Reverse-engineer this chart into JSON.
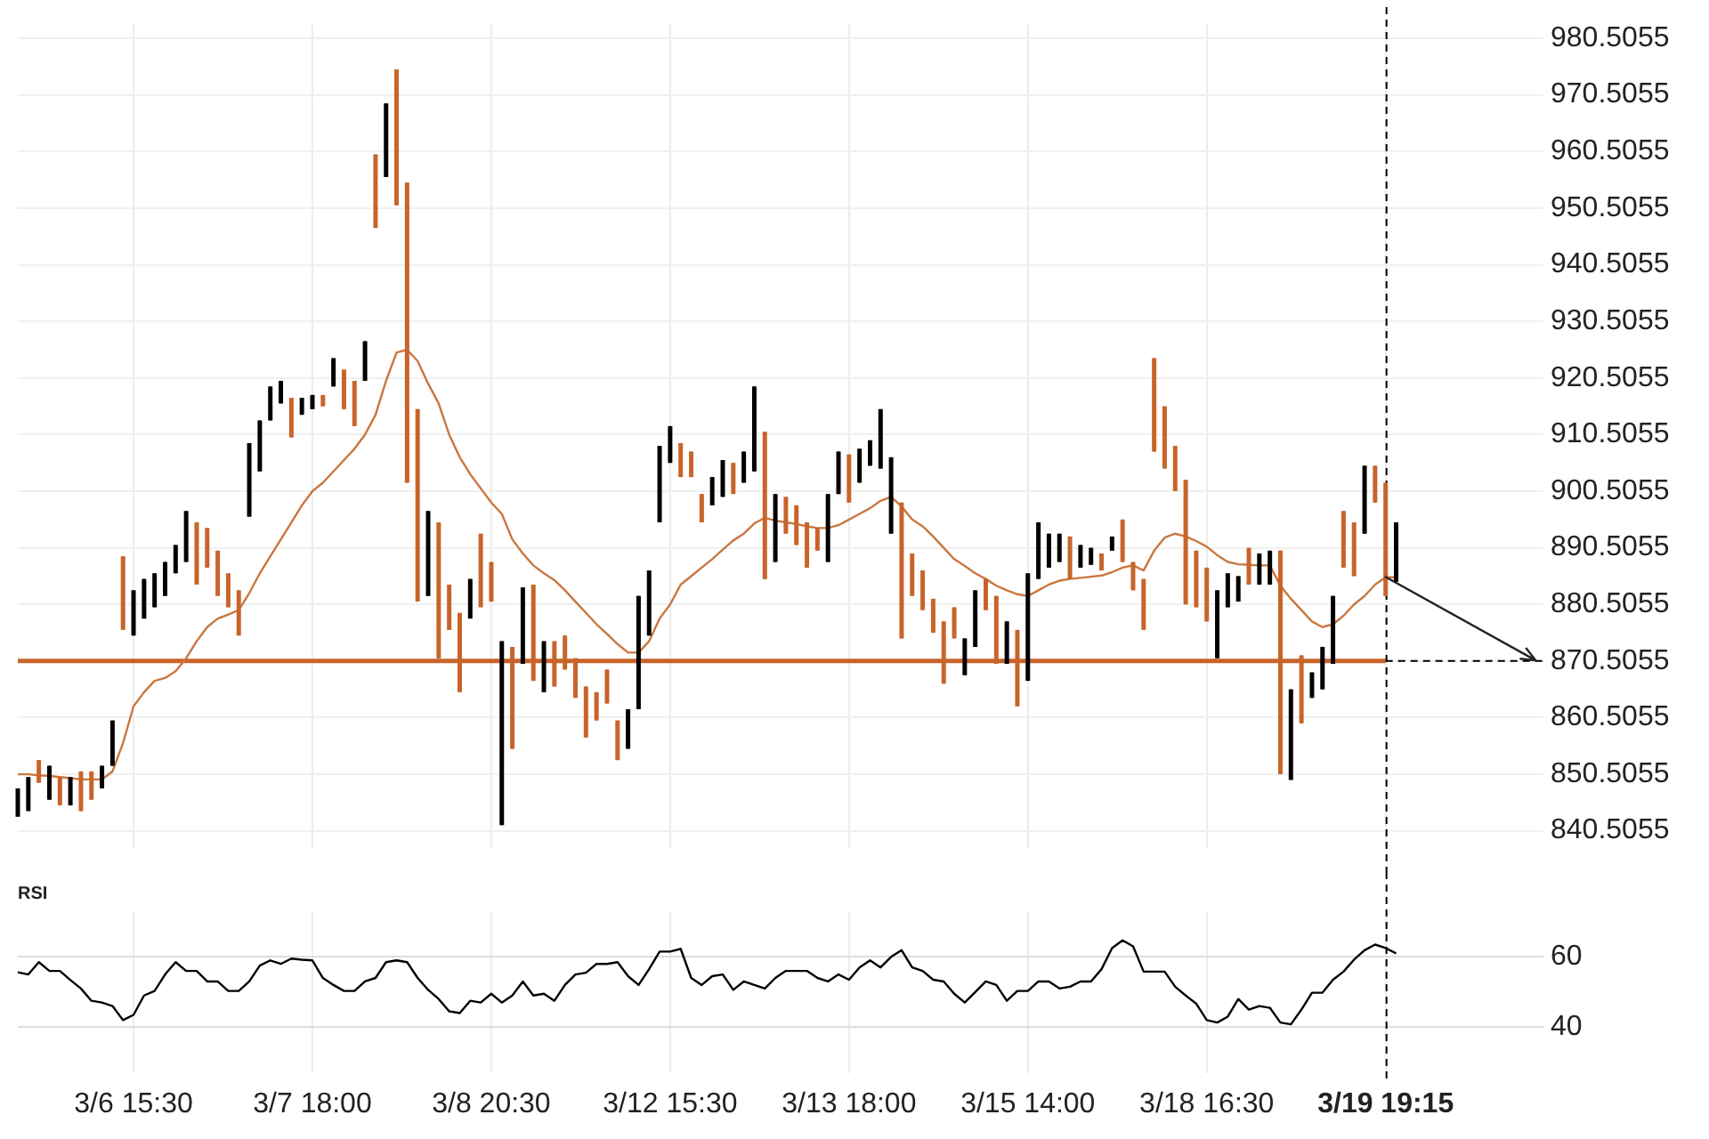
{
  "chart_data": [
    {
      "type": "candlestick",
      "categories": [
        null,
        null,
        null,
        null,
        null,
        null,
        null,
        null,
        null,
        null,
        null,
        "3/6 15:30",
        null,
        null,
        null,
        null,
        null,
        null,
        null,
        null,
        null,
        null,
        null,
        null,
        null,
        null,
        null,
        null,
        "3/7 18:00",
        null,
        null,
        null,
        null,
        null,
        null,
        null,
        null,
        null,
        null,
        null,
        null,
        null,
        null,
        null,
        null,
        "3/8 20:30",
        null,
        null,
        null,
        null,
        null,
        null,
        null,
        null,
        null,
        null,
        null,
        null,
        null,
        null,
        null,
        null,
        "3/12 15:30",
        null,
        null,
        null,
        null,
        null,
        null,
        null,
        null,
        null,
        null,
        null,
        null,
        null,
        null,
        null,
        null,
        "3/13 18:00",
        null,
        null,
        null,
        null,
        null,
        null,
        null,
        null,
        null,
        null,
        null,
        null,
        null,
        null,
        null,
        null,
        "3/15 14:00",
        null,
        null,
        null,
        null,
        null,
        null,
        null,
        null,
        null,
        null,
        null,
        null,
        null,
        null,
        null,
        null,
        "3/18 16:30",
        null,
        null,
        null,
        null,
        null,
        null,
        null,
        null,
        null,
        null,
        null,
        null,
        null,
        null,
        null,
        null,
        "3/19 19:15",
        null,
        null,
        null,
        null,
        null,
        null,
        null,
        null,
        null,
        null,
        null,
        null,
        null,
        null,
        null
      ],
      "ohlc": [
        [
          843,
          848,
          843,
          848
        ],
        [
          844,
          850,
          844,
          850
        ],
        [
          853,
          853,
          849,
          849
        ],
        [
          846,
          852,
          846,
          852
        ],
        [
          850,
          850,
          845,
          845
        ],
        [
          845,
          850,
          845,
          850
        ],
        [
          851,
          851,
          844,
          844
        ],
        [
          851,
          851,
          846,
          846
        ],
        [
          848,
          852,
          848,
          852
        ],
        [
          852,
          860,
          852,
          860
        ],
        [
          889,
          889,
          876,
          876
        ],
        [
          875,
          883,
          875,
          883
        ],
        [
          878,
          885,
          878,
          885
        ],
        [
          880,
          886,
          880,
          886
        ],
        [
          882,
          888,
          882,
          888
        ],
        [
          886,
          891,
          886,
          891
        ],
        [
          888,
          897,
          888,
          897
        ],
        [
          895,
          895,
          884,
          884
        ],
        [
          894,
          894,
          887,
          887
        ],
        [
          890,
          890,
          882,
          882
        ],
        [
          886,
          886,
          880,
          880
        ],
        [
          883,
          883,
          875,
          875
        ],
        [
          896,
          909,
          896,
          909
        ],
        [
          904,
          913,
          904,
          913
        ],
        [
          913,
          919,
          913,
          919
        ],
        [
          916,
          920,
          916,
          920
        ],
        [
          917,
          917,
          910,
          910
        ],
        [
          914,
          917,
          914,
          917
        ],
        [
          915,
          917.5,
          915,
          917.5
        ],
        [
          917.5,
          917.5,
          915.5,
          915.5
        ],
        [
          919,
          924,
          919,
          924
        ],
        [
          922,
          922,
          915,
          915
        ],
        [
          920,
          920,
          912,
          912
        ],
        [
          920,
          927,
          920,
          927
        ],
        [
          960,
          960,
          947,
          947
        ],
        [
          956,
          969,
          956,
          969
        ],
        [
          975,
          975,
          951,
          951
        ],
        [
          955,
          955,
          902,
          902
        ],
        [
          915,
          915,
          881,
          881
        ],
        [
          882,
          897,
          882,
          897
        ],
        [
          895,
          895,
          871,
          871
        ],
        [
          884,
          884,
          876,
          876
        ],
        [
          879,
          879,
          865,
          865
        ],
        [
          878,
          885,
          878,
          885
        ],
        [
          893,
          893,
          880,
          880
        ],
        [
          888,
          888,
          881,
          881
        ],
        [
          841.5,
          874,
          841.5,
          874
        ],
        [
          873,
          873,
          855,
          855
        ],
        [
          870,
          883.5,
          870,
          883.5
        ],
        [
          884,
          884,
          867,
          867
        ],
        [
          865,
          874,
          865,
          874
        ],
        [
          874,
          874,
          866,
          866
        ],
        [
          875,
          875,
          869,
          869
        ],
        [
          871,
          871,
          864,
          864
        ],
        [
          866,
          866,
          857,
          857
        ],
        [
          865,
          865,
          860,
          860
        ],
        [
          869,
          869,
          863,
          863
        ],
        [
          860,
          860,
          853,
          853
        ],
        [
          855,
          862,
          855,
          862
        ],
        [
          862,
          882,
          862,
          882
        ],
        [
          875,
          886.5,
          875,
          886.5
        ],
        [
          895,
          908.5,
          895,
          908.5
        ],
        [
          905.5,
          912,
          905.5,
          912
        ],
        [
          909,
          909,
          903,
          903
        ],
        [
          907.5,
          907.5,
          903,
          903
        ],
        [
          900,
          900,
          895,
          895
        ],
        [
          898,
          903,
          898,
          903
        ],
        [
          899.5,
          906,
          899.5,
          906
        ],
        [
          905.5,
          905.5,
          900,
          900
        ],
        [
          902,
          907.5,
          902,
          907.5
        ],
        [
          904,
          919,
          904,
          919
        ],
        [
          911,
          911,
          885,
          885
        ],
        [
          888,
          900,
          888,
          900
        ],
        [
          899.5,
          899.5,
          893,
          893
        ],
        [
          898,
          898,
          891,
          891
        ],
        [
          895,
          895,
          887,
          887
        ],
        [
          894,
          894,
          890,
          890
        ],
        [
          888,
          900,
          888,
          900
        ],
        [
          900,
          907.5,
          900,
          907.5
        ],
        [
          907,
          907,
          898.5,
          898.5
        ],
        [
          902,
          908,
          902,
          908
        ],
        [
          905,
          909.5,
          905,
          909.5
        ],
        [
          904.5,
          915,
          904.5,
          915
        ],
        [
          893,
          906.5,
          893,
          906.5
        ],
        [
          898.5,
          898.5,
          874.5,
          874.5
        ],
        [
          889.5,
          889.5,
          882,
          882
        ],
        [
          886.5,
          886.5,
          879.5,
          879.5
        ],
        [
          881.5,
          881.5,
          875.5,
          875.5
        ],
        [
          877.5,
          877.5,
          866.5,
          866.5
        ],
        [
          880,
          880,
          874.5,
          874.5
        ],
        [
          868,
          874.5,
          868,
          874.5
        ],
        [
          873,
          883,
          873,
          883
        ],
        [
          885,
          885,
          879.5,
          879.5
        ],
        [
          882,
          882,
          870,
          870
        ],
        [
          870,
          877.5,
          870,
          877.5
        ],
        [
          876,
          876,
          862.5,
          862.5
        ],
        [
          867,
          886,
          867,
          886
        ],
        [
          885,
          895,
          885,
          895
        ],
        [
          887,
          893,
          887,
          893
        ],
        [
          888,
          893,
          888,
          893
        ],
        [
          892.5,
          892.5,
          885,
          885
        ],
        [
          887,
          891,
          887,
          891
        ],
        [
          887.5,
          890.5,
          887.5,
          890.5
        ],
        [
          889.5,
          889.5,
          886.5,
          886.5
        ],
        [
          890,
          892.5,
          890,
          892.5
        ],
        [
          895.5,
          895.5,
          888,
          888
        ],
        [
          888,
          888,
          883,
          883
        ],
        [
          885,
          885,
          876,
          876
        ],
        [
          924,
          924,
          907.5,
          907.5
        ],
        [
          915.5,
          915.5,
          904.5,
          904.5
        ],
        [
          908.5,
          908.5,
          900.5,
          900.5
        ],
        [
          902.5,
          902.5,
          880.5,
          880.5
        ],
        [
          890,
          890,
          880,
          880
        ],
        [
          887,
          887,
          877.5,
          877.5
        ],
        [
          871,
          883,
          871,
          883
        ],
        [
          880,
          886,
          880,
          886
        ],
        [
          881,
          885.5,
          881,
          885.5
        ],
        [
          890.5,
          890.5,
          884,
          884
        ],
        [
          884,
          889.5,
          884,
          889.5
        ],
        [
          884,
          890,
          884,
          890
        ],
        [
          890,
          890,
          850.5,
          850.5
        ],
        [
          849.5,
          865.5,
          849.5,
          865.5
        ],
        [
          871.5,
          871.5,
          859.5,
          859.5
        ],
        [
          864,
          868.5,
          864,
          868.5
        ],
        [
          865.5,
          873,
          865.5,
          873
        ],
        [
          870,
          882,
          870,
          882
        ],
        [
          897,
          897,
          887,
          887
        ],
        [
          895,
          895,
          885.5,
          885.5
        ],
        [
          893,
          905,
          893,
          905
        ],
        [
          905,
          905,
          898.5,
          898.5
        ],
        [
          902,
          902,
          882,
          882
        ],
        [
          884.5,
          895,
          884.5,
          895
        ],
        null,
        null,
        null,
        null,
        null,
        null,
        null,
        null,
        null,
        null,
        null,
        null,
        null,
        null
      ],
      "colors": [
        "#000000",
        "#000000",
        "#c8642a",
        "#000000",
        "#c8642a",
        "#000000",
        "#c8642a",
        "#c8642a",
        "#000000",
        "#000000",
        "#c8642a",
        "#000000",
        "#000000",
        "#000000",
        "#000000",
        "#000000",
        "#000000",
        "#c8642a",
        "#c8642a",
        "#c8642a",
        "#c8642a",
        "#c8642a",
        "#000000",
        "#000000",
        "#000000",
        "#000000",
        "#c8642a",
        "#000000",
        "#000000",
        "#c8642a",
        "#000000",
        "#c8642a",
        "#c8642a",
        "#000000",
        "#c8642a",
        "#000000",
        "#c8642a",
        "#c8642a",
        "#c8642a",
        "#000000",
        "#c8642a",
        "#c8642a",
        "#c8642a",
        "#000000",
        "#c8642a",
        "#c8642a",
        "#000000",
        "#c8642a",
        "#000000",
        "#c8642a",
        "#000000",
        "#c8642a",
        "#c8642a",
        "#c8642a",
        "#c8642a",
        "#c8642a",
        "#c8642a",
        "#c8642a",
        "#000000",
        "#000000",
        "#000000",
        "#000000",
        "#000000",
        "#c8642a",
        "#c8642a",
        "#c8642a",
        "#000000",
        "#000000",
        "#c8642a",
        "#000000",
        "#000000",
        "#c8642a",
        "#000000",
        "#c8642a",
        "#c8642a",
        "#c8642a",
        "#c8642a",
        "#000000",
        "#000000",
        "#c8642a",
        "#000000",
        "#000000",
        "#000000",
        "#000000",
        "#c8642a",
        "#c8642a",
        "#c8642a",
        "#c8642a",
        "#c8642a",
        "#c8642a",
        "#000000",
        "#000000",
        "#c8642a",
        "#c8642a",
        "#000000",
        "#c8642a",
        "#000000",
        "#000000",
        "#000000",
        "#000000",
        "#c8642a",
        "#000000",
        "#000000",
        "#c8642a",
        "#000000",
        "#c8642a",
        "#c8642a",
        "#c8642a",
        "#c8642a",
        "#c8642a",
        "#c8642a",
        "#c8642a",
        "#c8642a",
        "#c8642a",
        "#000000",
        "#000000",
        "#000000",
        "#c8642a",
        "#000000",
        "#000000",
        "#c8642a",
        "#000000",
        "#c8642a",
        "#000000",
        "#000000",
        "#000000",
        "#c8642a",
        "#c8642a",
        "#000000",
        "#c8642a",
        "#c8642a",
        "#000000",
        null,
        null,
        null,
        null,
        null,
        null,
        null,
        null,
        null,
        null,
        null,
        null,
        null,
        null
      ],
      "series": [
        {
          "type": "line",
          "color": "#c9773f",
          "values": [
            850.5,
            850.5,
            850.3,
            850.2,
            850,
            849.8,
            849.6,
            849.6,
            849.6,
            851,
            856,
            862.5,
            865,
            867,
            867.5,
            868.7,
            871,
            874,
            876.5,
            878,
            878.7,
            879.5,
            882.5,
            886,
            889,
            892,
            895,
            898,
            900.5,
            902,
            904,
            906,
            908,
            910.5,
            914,
            920,
            925,
            925.5,
            923.5,
            919.5,
            916,
            910.5,
            906.5,
            903.5,
            901,
            898.5,
            896.5,
            892,
            889.5,
            887.4,
            886,
            884.8,
            883,
            881,
            879,
            877,
            875.3,
            873.5,
            872,
            872,
            874,
            878,
            880.5,
            884,
            885.5,
            887,
            888.5,
            890.2,
            891.8,
            893,
            894.8,
            895.8,
            895.3,
            895,
            894.7,
            894.3,
            894,
            894,
            894.5,
            895.5,
            896.5,
            897.5,
            898.8,
            899.5,
            897.8,
            895.5,
            894.3,
            892.5,
            890.5,
            888.5,
            887.3,
            886,
            885,
            883.8,
            883,
            882.3,
            882,
            883,
            884,
            884.7,
            885,
            885.2,
            885.4,
            885.6,
            886.2,
            887,
            887.4,
            886.5,
            890,
            892.3,
            893,
            892.5,
            891.7,
            890.7,
            889.2,
            888,
            887.6,
            887.5,
            887.4,
            887.4,
            883.8,
            881.5,
            879.5,
            877.5,
            876.5,
            877,
            878.5,
            880.5,
            882,
            884,
            885.3,
            885.3,
            null,
            null,
            null,
            null,
            null,
            null,
            null,
            null,
            null,
            null,
            null,
            null,
            null,
            null
          ]
        }
      ],
      "ylim": [
        837.5,
        983
      ],
      "yticks": [
        840.5055,
        850.5055,
        860.5055,
        870.5055,
        880.5055,
        890.5055,
        900.5055,
        910.5055,
        920.5055,
        930.5055,
        940.5055,
        950.5055,
        960.5055,
        970.5055,
        980.5055
      ],
      "grid": true,
      "tick_labels": "y",
      "ref_lines": [
        {
          "axis": "y",
          "value": 870.5055,
          "color": "#c8642a"
        },
        {
          "axis": "y",
          "value": 870.5055,
          "color": "#000000",
          "line_style": "dashed"
        },
        {
          "axis": "x",
          "value": "3/19 19:15",
          "color": "#000000",
          "line_style": "dashed"
        }
      ]
    },
    {
      "type": "line",
      "title": "RSI",
      "categories": [
        null,
        null,
        null,
        null,
        null,
        null,
        null,
        null,
        null,
        null,
        null,
        "3/6 15:30",
        null,
        null,
        null,
        null,
        null,
        null,
        null,
        null,
        null,
        null,
        null,
        null,
        null,
        null,
        null,
        null,
        "3/7 18:00",
        null,
        null,
        null,
        null,
        null,
        null,
        null,
        null,
        null,
        null,
        null,
        null,
        null,
        null,
        null,
        null,
        "3/8 20:30",
        null,
        null,
        null,
        null,
        null,
        null,
        null,
        null,
        null,
        null,
        null,
        null,
        null,
        null,
        null,
        null,
        "3/12 15:30",
        null,
        null,
        null,
        null,
        null,
        null,
        null,
        null,
        null,
        null,
        null,
        null,
        null,
        null,
        null,
        null,
        "3/13 18:00",
        null,
        null,
        null,
        null,
        null,
        null,
        null,
        null,
        null,
        null,
        null,
        null,
        null,
        null,
        null,
        null,
        "3/15 14:00",
        null,
        null,
        null,
        null,
        null,
        null,
        null,
        null,
        null,
        null,
        null,
        null,
        null,
        null,
        null,
        null,
        "3/18 16:30",
        null,
        null,
        null,
        null,
        null,
        null,
        null,
        null,
        null,
        null,
        null,
        null,
        null,
        null,
        null,
        null,
        "3/19 19:15",
        null,
        null,
        null,
        null,
        null,
        null,
        null,
        null,
        null,
        null,
        null,
        null,
        null,
        null,
        null
      ],
      "color": "#000000",
      "values": [
        55.6,
        55,
        58.5,
        56,
        56,
        53.4,
        51,
        47.5,
        47,
        46,
        42,
        43.5,
        49,
        50.3,
        55,
        58.5,
        56,
        56,
        53,
        53,
        50.3,
        50.3,
        53,
        57.5,
        59,
        58,
        59.5,
        59.2,
        59,
        54,
        52,
        50.3,
        50.3,
        53,
        54,
        58.5,
        59,
        58.5,
        54,
        50.6,
        48,
        44.5,
        44,
        47.5,
        47,
        49.5,
        47,
        49,
        53,
        49,
        49.5,
        47.5,
        52,
        55,
        55.5,
        58,
        58,
        58.5,
        54.5,
        52,
        56.5,
        61.5,
        61.5,
        62.3,
        54,
        52,
        54.5,
        55,
        50.6,
        53,
        52,
        51,
        54,
        56,
        56,
        56,
        54,
        53,
        55,
        53.5,
        57,
        59,
        57,
        60,
        61.9,
        57,
        56,
        53.5,
        53,
        49.5,
        47,
        50,
        53,
        52,
        47.5,
        50.3,
        50.3,
        53,
        53,
        51,
        51.5,
        53,
        53,
        56.5,
        62.5,
        64.7,
        63,
        55.8,
        55.8,
        55.8,
        51.5,
        49,
        46.7,
        42,
        41.3,
        43,
        48,
        45,
        46,
        45.5,
        41.3,
        40.8,
        45,
        49.8,
        49.8,
        53.5,
        55.8,
        59.2,
        61.9,
        63.5,
        62.5,
        61,
        null,
        null,
        null,
        null,
        null,
        null,
        null,
        null,
        null,
        null,
        null,
        null,
        null,
        null
      ],
      "ylim": [
        27,
        73
      ],
      "yticks": [
        40,
        60
      ],
      "grid": true,
      "ref_lines": [
        {
          "axis": "x",
          "value": "3/19 19:15",
          "color": "#000000",
          "line_style": "dashed"
        }
      ]
    }
  ]
}
